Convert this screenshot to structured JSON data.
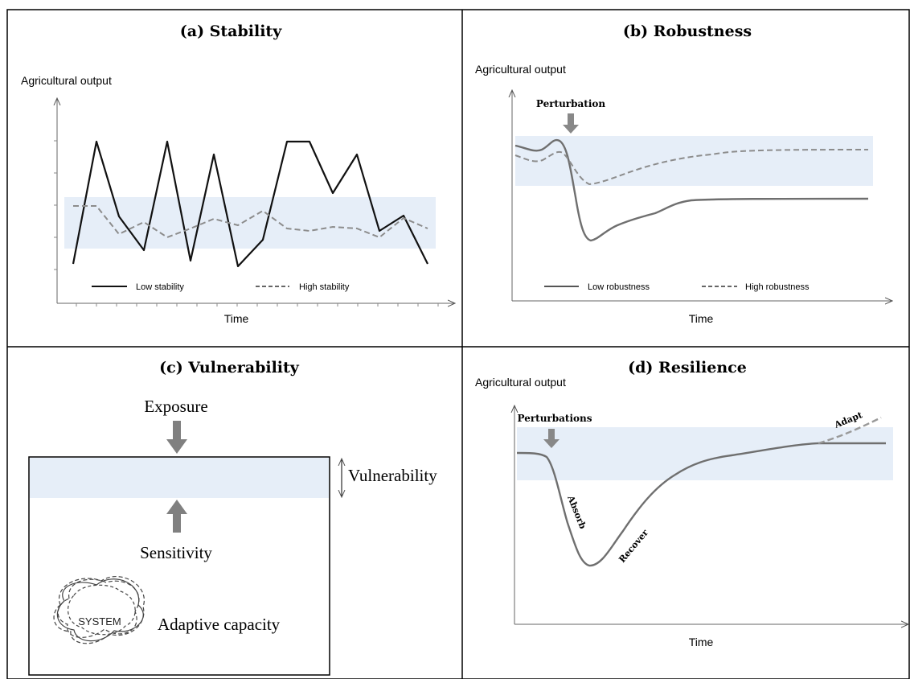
{
  "colors": {
    "band": "#e6eef8",
    "dark_line": "#111111",
    "grey_line": "#8c8c8c",
    "arrow_grey": "#888888",
    "frame": "#000000"
  },
  "panel_a": {
    "title": "(a) Stability",
    "ylabel": "Agricultural output",
    "xlabel": "Time",
    "legend_low": "Low stability",
    "legend_high": "High stability"
  },
  "panel_b": {
    "title": "(b) Robustness",
    "ylabel": "Agricultural output",
    "xlabel": "Time",
    "perturbation": "Perturbation",
    "legend_low": "Low robustness",
    "legend_high": "High robustness"
  },
  "panel_c": {
    "title": "(c) Vulnerability",
    "exposure": "Exposure",
    "sensitivity": "Sensitivity",
    "vulnerability": "Vulnerability",
    "system": "SYSTEM",
    "adaptive_capacity": "Adaptive capacity"
  },
  "panel_d": {
    "title": "(d) Resilience",
    "ylabel": "Agricultural output",
    "xlabel": "Time",
    "perturbations": "Perturbations",
    "absorb": "Absorb",
    "recover": "Recover",
    "adapt": "Adapt"
  }
}
